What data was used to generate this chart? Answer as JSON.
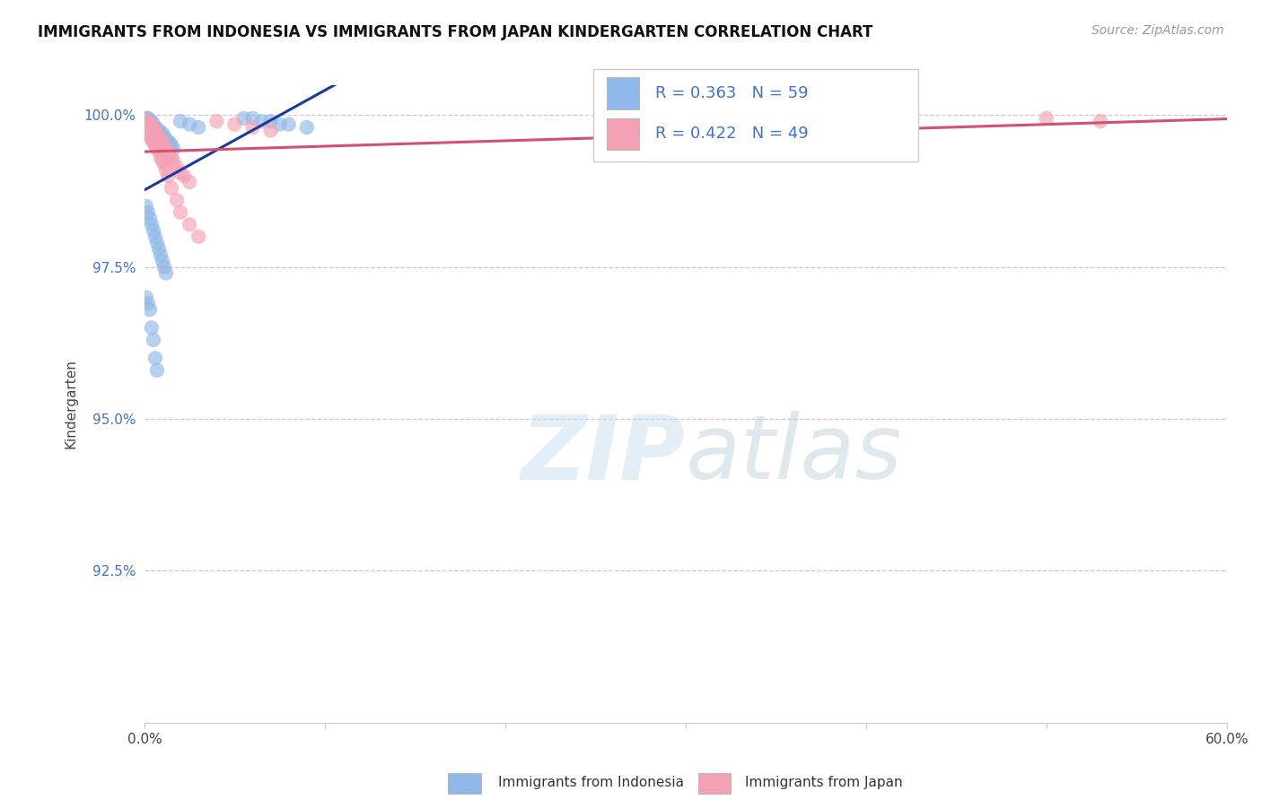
{
  "title": "IMMIGRANTS FROM INDONESIA VS IMMIGRANTS FROM JAPAN KINDERGARTEN CORRELATION CHART",
  "source": "Source: ZipAtlas.com",
  "ylabel": "Kindergarten",
  "xlim": [
    0.0,
    0.6
  ],
  "ylim": [
    0.9,
    1.005
  ],
  "xticks": [
    0.0,
    0.1,
    0.2,
    0.3,
    0.4,
    0.5,
    0.6
  ],
  "xticklabels": [
    "0.0%",
    "",
    "",
    "",
    "",
    "",
    "60.0%"
  ],
  "yticks": [
    0.925,
    0.95,
    0.975,
    1.0
  ],
  "yticklabels": [
    "92.5%",
    "95.0%",
    "97.5%",
    "100.0%"
  ],
  "legend_label1": "Immigrants from Indonesia",
  "legend_label2": "Immigrants from Japan",
  "R1": 0.363,
  "N1": 59,
  "R2": 0.422,
  "N2": 49,
  "blue_color": "#90B8E8",
  "pink_color": "#F4A0B5",
  "blue_line_color": "#1A3A9C",
  "pink_line_color": "#D45070",
  "watermark_color": "#C8DFF0",
  "background_color": "#ffffff",
  "indonesia_x": [
    0.001,
    0.001,
    0.002,
    0.002,
    0.002,
    0.003,
    0.003,
    0.003,
    0.004,
    0.004,
    0.004,
    0.005,
    0.005,
    0.005,
    0.006,
    0.006,
    0.007,
    0.007,
    0.008,
    0.008,
    0.009,
    0.009,
    0.01,
    0.01,
    0.011,
    0.012,
    0.013,
    0.014,
    0.015,
    0.016,
    0.001,
    0.002,
    0.003,
    0.004,
    0.005,
    0.006,
    0.007,
    0.008,
    0.009,
    0.01,
    0.011,
    0.012,
    0.001,
    0.002,
    0.003,
    0.004,
    0.005,
    0.006,
    0.007,
    0.02,
    0.025,
    0.03,
    0.055,
    0.06,
    0.065,
    0.07,
    0.075,
    0.08,
    0.09
  ],
  "indonesia_y": [
    0.9995,
    0.999,
    0.9995,
    0.999,
    0.9985,
    0.999,
    0.9985,
    0.998,
    0.999,
    0.9985,
    0.998,
    0.9985,
    0.998,
    0.9975,
    0.998,
    0.9975,
    0.9975,
    0.997,
    0.9975,
    0.9965,
    0.997,
    0.996,
    0.997,
    0.996,
    0.9965,
    0.996,
    0.9955,
    0.9955,
    0.995,
    0.9945,
    0.985,
    0.984,
    0.983,
    0.982,
    0.981,
    0.98,
    0.979,
    0.978,
    0.977,
    0.976,
    0.975,
    0.974,
    0.97,
    0.969,
    0.968,
    0.965,
    0.963,
    0.96,
    0.958,
    0.999,
    0.9985,
    0.998,
    0.9995,
    0.9995,
    0.999,
    0.999,
    0.9985,
    0.9985,
    0.998
  ],
  "japan_x": [
    0.001,
    0.002,
    0.002,
    0.003,
    0.003,
    0.004,
    0.004,
    0.005,
    0.005,
    0.006,
    0.006,
    0.007,
    0.007,
    0.008,
    0.009,
    0.01,
    0.011,
    0.012,
    0.013,
    0.014,
    0.015,
    0.016,
    0.018,
    0.02,
    0.022,
    0.025,
    0.002,
    0.003,
    0.004,
    0.005,
    0.006,
    0.007,
    0.008,
    0.009,
    0.01,
    0.011,
    0.012,
    0.013,
    0.015,
    0.018,
    0.02,
    0.025,
    0.03,
    0.04,
    0.05,
    0.06,
    0.07,
    0.5,
    0.53
  ],
  "japan_y": [
    0.999,
    0.999,
    0.9985,
    0.9985,
    0.998,
    0.9985,
    0.9975,
    0.998,
    0.997,
    0.9975,
    0.9965,
    0.997,
    0.996,
    0.9965,
    0.996,
    0.9955,
    0.995,
    0.9945,
    0.994,
    0.9935,
    0.993,
    0.9925,
    0.9915,
    0.9905,
    0.99,
    0.989,
    0.997,
    0.9965,
    0.996,
    0.9955,
    0.995,
    0.9945,
    0.994,
    0.993,
    0.9925,
    0.992,
    0.991,
    0.99,
    0.988,
    0.986,
    0.984,
    0.982,
    0.98,
    0.999,
    0.9985,
    0.998,
    0.9975,
    0.9995,
    0.999
  ]
}
